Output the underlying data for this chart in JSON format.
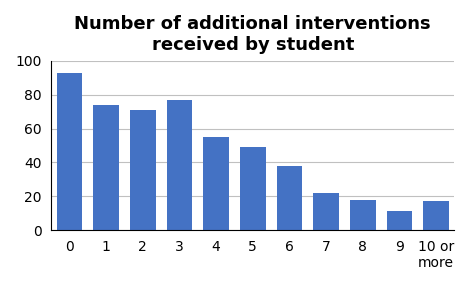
{
  "title": "Number of additional interventions\nreceived by student",
  "categories": [
    "0",
    "1",
    "2",
    "3",
    "4",
    "5",
    "6",
    "7",
    "8",
    "9",
    "10 or\nmore"
  ],
  "values": [
    93,
    74,
    71,
    77,
    55,
    49,
    38,
    22,
    18,
    11,
    17
  ],
  "bar_color": "#4472C4",
  "ylim": [
    0,
    100
  ],
  "yticks": [
    0,
    20,
    40,
    60,
    80,
    100
  ],
  "title_fontsize": 13,
  "tick_fontsize": 10,
  "background_color": "#ffffff",
  "grid_color": "#c0c0c0"
}
